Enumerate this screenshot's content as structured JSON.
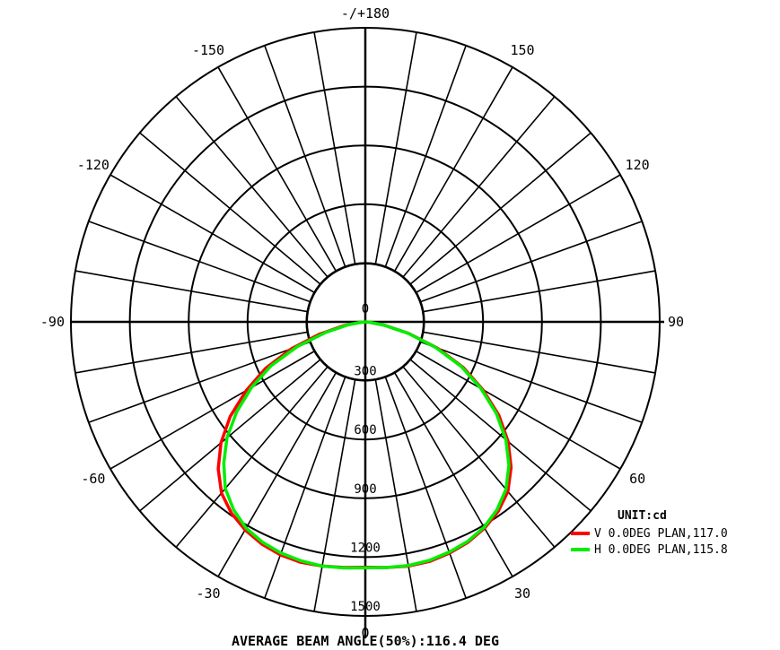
{
  "chart_data": {
    "type": "polar",
    "unit_label": "UNIT:cd",
    "radial_ticks": [
      0,
      300,
      600,
      900,
      1200,
      1500
    ],
    "radial_tick_labels": [
      "0",
      "300",
      "600",
      "900",
      "1200",
      "1500"
    ],
    "r_max": 1500,
    "grid_rings": [
      300,
      600,
      900,
      1200,
      1500
    ],
    "spoke_step_deg": 10,
    "angle_labels": [
      {
        "deg": 0,
        "text": "0"
      },
      {
        "deg": 30,
        "text": "30"
      },
      {
        "deg": 60,
        "text": "60"
      },
      {
        "deg": 90,
        "text": "90"
      },
      {
        "deg": 120,
        "text": "120"
      },
      {
        "deg": 150,
        "text": "150"
      },
      {
        "deg": 180,
        "text": "-/+180"
      },
      {
        "deg": -30,
        "text": "-30"
      },
      {
        "deg": -60,
        "text": "-60"
      },
      {
        "deg": -90,
        "text": "-90"
      },
      {
        "deg": -120,
        "text": "-120"
      },
      {
        "deg": -150,
        "text": "-150"
      }
    ],
    "series": [
      {
        "name": "V 0.0DEG PLAN,117.0",
        "color": "#ff0000",
        "angles": [
          -90,
          -85,
          -80,
          -75,
          -70,
          -65,
          -60,
          -55,
          -50,
          -45,
          -40,
          -35,
          -30,
          -25,
          -20,
          -15,
          -10,
          -5,
          0,
          5,
          10,
          15,
          20,
          25,
          30,
          35,
          40,
          45,
          50,
          55,
          60,
          65,
          70,
          75,
          80,
          85,
          90
        ],
        "values": [
          0,
          30,
          110,
          240,
          400,
          560,
          700,
          840,
          960,
          1060,
          1140,
          1190,
          1225,
          1250,
          1265,
          1270,
          1265,
          1258,
          1252,
          1258,
          1265,
          1265,
          1255,
          1240,
          1215,
          1180,
          1130,
          1050,
          950,
          830,
          690,
          550,
          390,
          230,
          100,
          25,
          0
        ]
      },
      {
        "name": "H 0.0DEG PLAN,115.8",
        "color": "#00ee00",
        "angles": [
          -90,
          -85,
          -80,
          -75,
          -70,
          -65,
          -60,
          -55,
          -50,
          -45,
          -40,
          -35,
          -30,
          -25,
          -20,
          -15,
          -10,
          -5,
          0,
          5,
          10,
          15,
          20,
          25,
          30,
          35,
          40,
          45,
          50,
          55,
          60,
          65,
          70,
          75,
          80,
          85,
          90
        ],
        "values": [
          0,
          20,
          90,
          210,
          370,
          530,
          670,
          800,
          920,
          1020,
          1110,
          1170,
          1215,
          1240,
          1255,
          1262,
          1265,
          1260,
          1255,
          1258,
          1262,
          1260,
          1250,
          1235,
          1210,
          1170,
          1115,
          1035,
          935,
          815,
          680,
          540,
          380,
          225,
          95,
          20,
          0
        ]
      }
    ]
  },
  "footer": {
    "beam_angle_text": "AVERAGE BEAM ANGLE(50%):116.4 DEG"
  }
}
